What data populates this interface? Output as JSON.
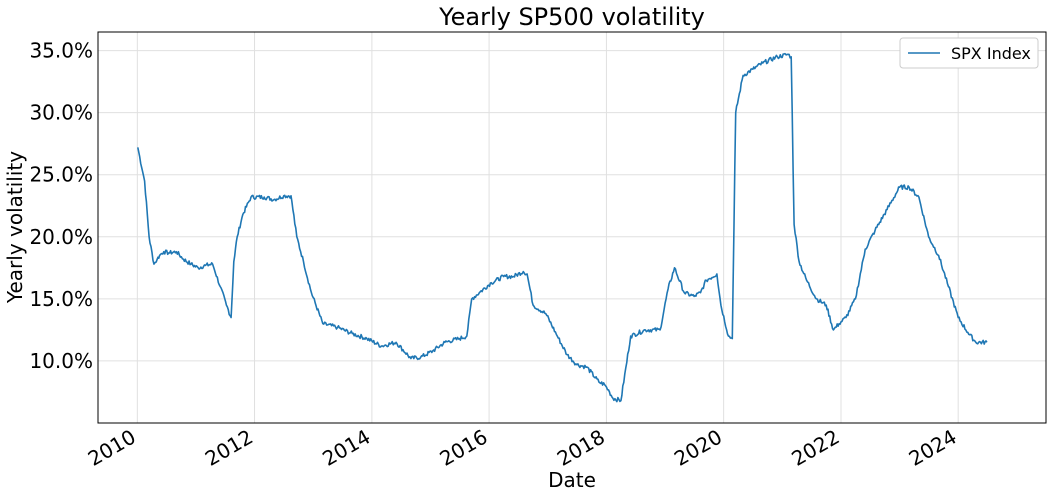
{
  "chart_data": {
    "type": "line",
    "title": "Yearly SP500 volatility",
    "xlabel": "Date",
    "ylabel": "Yearly volatility",
    "xlim": [
      "2009-05-01",
      "2025-07-01"
    ],
    "ylim": [
      0.05,
      0.365
    ],
    "y_format": "percent_1dp",
    "x_ticks": [
      "2010",
      "2012",
      "2014",
      "2016",
      "2018",
      "2020",
      "2022",
      "2024"
    ],
    "y_ticks": [
      "10.0%",
      "15.0%",
      "20.0%",
      "25.0%",
      "30.0%",
      "35.0%"
    ],
    "grid": true,
    "legend": {
      "position": "top-right",
      "entries": [
        "SPX Index"
      ]
    },
    "series": [
      {
        "name": "SPX Index",
        "color": "#1f77b4",
        "x": [
          "2010-01-04",
          "2010-02-15",
          "2010-03-15",
          "2010-04-15",
          "2010-05-05",
          "2010-05-20",
          "2010-06-15",
          "2010-07-15",
          "2010-09-01",
          "2010-10-15",
          "2010-12-01",
          "2011-01-15",
          "2011-03-01",
          "2011-04-15",
          "2011-06-01",
          "2011-07-10",
          "2011-08-08",
          "2011-08-25",
          "2011-09-15",
          "2011-10-20",
          "2011-12-10",
          "2012-03-01",
          "2012-05-01",
          "2012-07-01",
          "2012-08-15",
          "2012-09-20",
          "2012-11-01",
          "2012-12-20",
          "2013-03-01",
          "2013-06-01",
          "2013-09-01",
          "2013-12-01",
          "2014-03-01",
          "2014-06-01",
          "2014-09-01",
          "2014-11-01",
          "2015-01-15",
          "2015-04-01",
          "2015-07-01",
          "2015-08-15",
          "2015-09-15",
          "2015-11-01",
          "2016-01-15",
          "2016-04-01",
          "2016-06-01",
          "2016-08-01",
          "2016-08-25",
          "2016-10-01",
          "2016-12-20",
          "2017-03-01",
          "2017-05-01",
          "2017-07-01",
          "2017-09-01",
          "2017-11-15",
          "2017-12-20",
          "2018-01-20",
          "2018-02-10",
          "2018-04-01",
          "2018-06-01",
          "2018-09-01",
          "2018-12-01",
          "2019-01-20",
          "2019-03-01",
          "2019-05-01",
          "2019-07-01",
          "2019-08-10",
          "2019-09-15",
          "2019-11-20",
          "2019-12-15",
          "2020-01-31",
          "2020-02-24",
          "2020-03-16",
          "2020-05-01",
          "2020-07-01",
          "2020-09-01",
          "2020-12-01",
          "2021-02-05",
          "2021-02-25",
          "2021-03-15",
          "2021-04-15",
          "2021-06-01",
          "2021-08-01",
          "2021-10-01",
          "2021-11-15",
          "2021-12-20",
          "2022-02-01",
          "2022-04-01",
          "2022-06-01",
          "2022-08-01",
          "2022-10-15",
          "2023-01-01",
          "2023-03-01",
          "2023-05-01",
          "2023-07-01",
          "2023-09-01",
          "2023-11-01",
          "2024-01-01",
          "2024-03-01",
          "2024-04-20",
          "2024-06-28"
        ],
        "y": [
          0.272,
          0.245,
          0.2,
          0.178,
          0.182,
          0.185,
          0.188,
          0.187,
          0.188,
          0.182,
          0.178,
          0.175,
          0.177,
          0.178,
          0.16,
          0.145,
          0.135,
          0.18,
          0.2,
          0.218,
          0.232,
          0.232,
          0.23,
          0.233,
          0.233,
          0.2,
          0.18,
          0.155,
          0.13,
          0.127,
          0.122,
          0.118,
          0.112,
          0.115,
          0.102,
          0.103,
          0.108,
          0.115,
          0.118,
          0.12,
          0.15,
          0.155,
          0.163,
          0.168,
          0.168,
          0.172,
          0.17,
          0.145,
          0.138,
          0.12,
          0.105,
          0.097,
          0.095,
          0.083,
          0.081,
          0.075,
          0.07,
          0.068,
          0.12,
          0.125,
          0.125,
          0.158,
          0.175,
          0.155,
          0.152,
          0.155,
          0.165,
          0.17,
          0.145,
          0.12,
          0.118,
          0.3,
          0.33,
          0.335,
          0.34,
          0.345,
          0.347,
          0.345,
          0.21,
          0.18,
          0.165,
          0.15,
          0.145,
          0.125,
          0.13,
          0.135,
          0.15,
          0.19,
          0.205,
          0.222,
          0.24,
          0.24,
          0.232,
          0.2,
          0.185,
          0.16,
          0.135,
          0.123,
          0.115,
          0.115
        ]
      }
    ]
  }
}
